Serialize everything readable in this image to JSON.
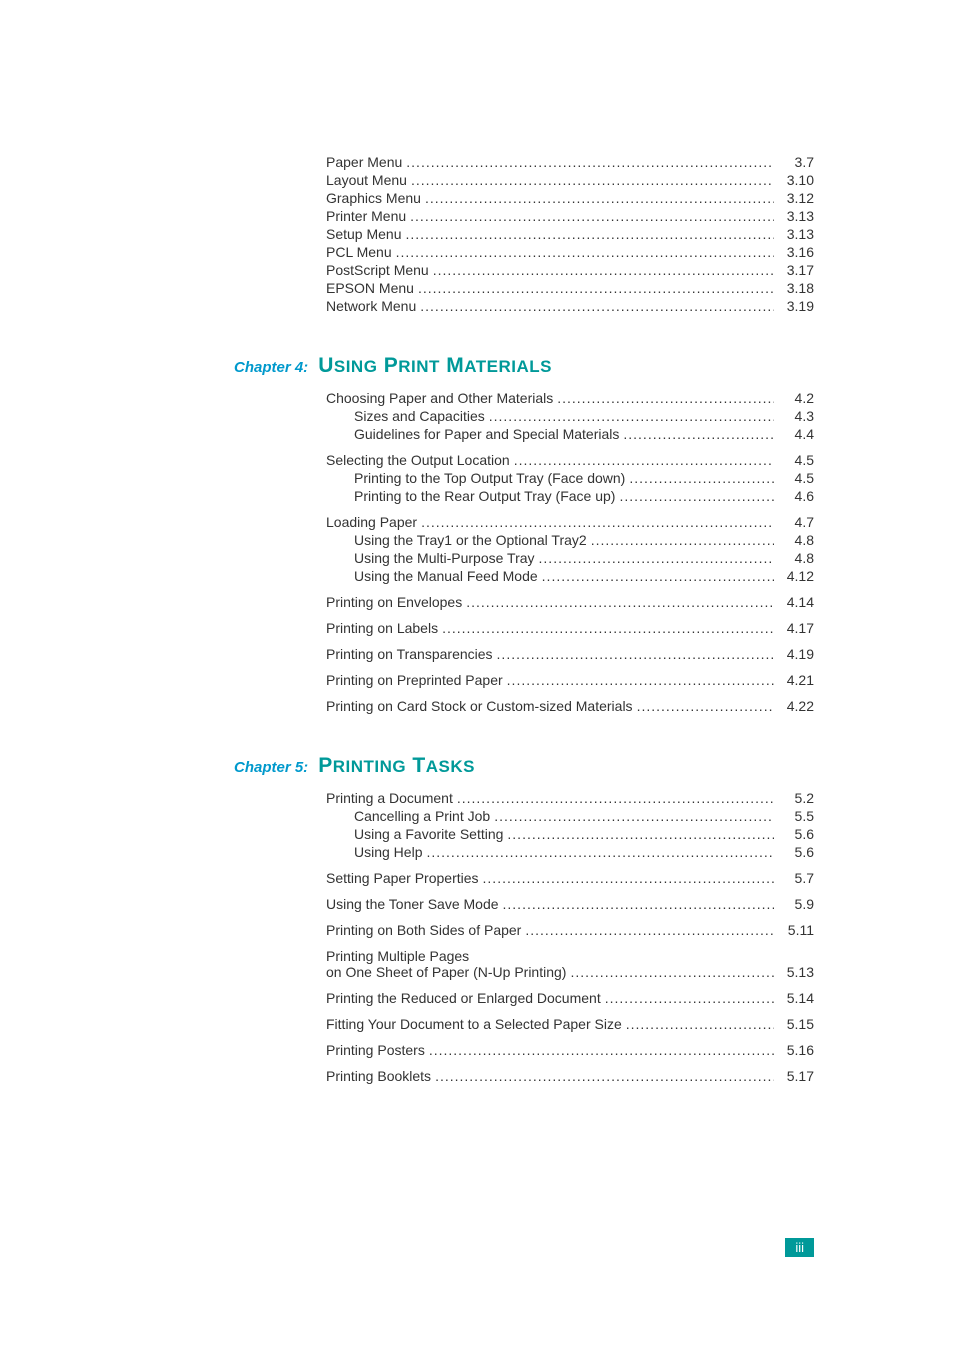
{
  "intro_block": {
    "entries": [
      {
        "label": "Paper Menu",
        "page": "3.7",
        "indent": 1
      },
      {
        "label": "Layout Menu",
        "page": "3.10",
        "indent": 1
      },
      {
        "label": "Graphics Menu",
        "page": "3.12",
        "indent": 1
      },
      {
        "label": "Printer Menu",
        "page": "3.13",
        "indent": 1
      },
      {
        "label": "Setup Menu",
        "page": "3.13",
        "indent": 1
      },
      {
        "label": "PCL Menu",
        "page": "3.16",
        "indent": 1
      },
      {
        "label": "PostScript Menu",
        "page": "3.17",
        "indent": 1
      },
      {
        "label": "EPSON Menu",
        "page": "3.18",
        "indent": 1
      },
      {
        "label": "Network Menu",
        "page": "3.19",
        "indent": 1
      }
    ]
  },
  "chapter4": {
    "prefix": "Chapter 4:",
    "title_caps": [
      "U",
      "SING",
      " P",
      "RINT",
      " M",
      "ATERIALS"
    ],
    "groups": [
      [
        {
          "label": "Choosing Paper and Other Materials",
          "page": "4.2",
          "indent": 1
        },
        {
          "label": "Sizes and Capacities",
          "page": "4.3",
          "indent": 2
        },
        {
          "label": "Guidelines for Paper and Special Materials",
          "page": "4.4",
          "indent": 2
        }
      ],
      [
        {
          "label": "Selecting the Output Location",
          "page": "4.5",
          "indent": 1
        },
        {
          "label": "Printing to the Top Output Tray (Face down)",
          "page": "4.5",
          "indent": 2
        },
        {
          "label": "Printing to the Rear Output Tray (Face up)",
          "page": "4.6",
          "indent": 2
        }
      ],
      [
        {
          "label": "Loading Paper",
          "page": "4.7",
          "indent": 1
        },
        {
          "label": "Using the Tray1 or the Optional Tray2",
          "page": "4.8",
          "indent": 2
        },
        {
          "label": "Using the Multi-Purpose Tray",
          "page": "4.8",
          "indent": 2
        },
        {
          "label": "Using the Manual Feed Mode",
          "page": "4.12",
          "indent": 2
        }
      ],
      [
        {
          "label": "Printing on Envelopes",
          "page": "4.14",
          "indent": 1
        }
      ],
      [
        {
          "label": "Printing on Labels",
          "page": "4.17",
          "indent": 1
        }
      ],
      [
        {
          "label": "Printing on Transparencies",
          "page": "4.19",
          "indent": 1
        }
      ],
      [
        {
          "label": "Printing on Preprinted Paper",
          "page": "4.21",
          "indent": 1
        }
      ],
      [
        {
          "label": "Printing on Card Stock or Custom-sized Materials",
          "page": "4.22",
          "indent": 1
        }
      ]
    ]
  },
  "chapter5": {
    "prefix": "Chapter 5:",
    "title_caps": [
      "P",
      "RINTING",
      " T",
      "ASKS"
    ],
    "groups": [
      [
        {
          "label": "Printing a Document",
          "page": "5.2",
          "indent": 1
        },
        {
          "label": "Cancelling a Print Job",
          "page": "5.5",
          "indent": 2
        },
        {
          "label": "Using a Favorite Setting",
          "page": "5.6",
          "indent": 2
        },
        {
          "label": "Using Help",
          "page": "5.6",
          "indent": 2
        }
      ],
      [
        {
          "label": "Setting Paper Properties",
          "page": "5.7",
          "indent": 1
        }
      ],
      [
        {
          "label": "Using the Toner Save Mode",
          "page": "5.9",
          "indent": 1
        }
      ],
      [
        {
          "label": "Printing on Both Sides of Paper",
          "page": "5.11",
          "indent": 1
        }
      ],
      [
        {
          "multiline": true,
          "line1": "Printing Multiple Pages",
          "line2": "on One Sheet of Paper (N-Up Printing)",
          "page": "5.13",
          "indent": 1
        }
      ],
      [
        {
          "label": "Printing the Reduced or Enlarged Document",
          "page": "5.14",
          "indent": 1
        }
      ],
      [
        {
          "label": "Fitting Your Document to a Selected Paper Size",
          "page": "5.15",
          "indent": 1
        }
      ],
      [
        {
          "label": "Printing Posters",
          "page": "5.16",
          "indent": 1
        }
      ],
      [
        {
          "label": "Printing Booklets",
          "page": "5.17",
          "indent": 1
        }
      ]
    ]
  },
  "footer": {
    "page_number": "iii"
  },
  "colors": {
    "teal": "#009999",
    "cyan": "#0099cc",
    "text": "#333333",
    "bg": "#ffffff"
  }
}
